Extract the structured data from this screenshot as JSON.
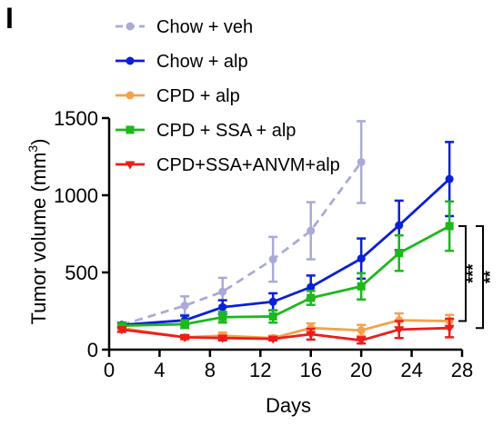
{
  "panel_label": "I",
  "chart_data": {
    "type": "line",
    "title": "",
    "xlabel": "Days",
    "ylabel_main": "Tumor volume (mm",
    "ylabel_sup": "3",
    "ylabel_close": ")",
    "xlim": [
      0,
      28
    ],
    "ylim": [
      0,
      1500
    ],
    "xticks": [
      0,
      4,
      8,
      12,
      16,
      20,
      24,
      28
    ],
    "yticks": [
      0,
      500,
      1000,
      1500
    ],
    "legend_position": "top-left",
    "series": [
      {
        "name": "Chow + veh",
        "color": "#a9abd6",
        "dashed": true,
        "marker": "circle",
        "x": [
          1,
          6,
          9,
          13,
          16,
          20
        ],
        "y": [
          160,
          285,
          375,
          585,
          770,
          1215
        ],
        "err": [
          15,
          60,
          90,
          145,
          185,
          265
        ]
      },
      {
        "name": "Chow + alp",
        "color": "#0a1fd8",
        "dashed": false,
        "marker": "circle",
        "x": [
          1,
          6,
          9,
          13,
          16,
          20,
          23,
          27
        ],
        "y": [
          160,
          190,
          275,
          310,
          405,
          590,
          805,
          1105
        ],
        "err": [
          15,
          30,
          45,
          55,
          75,
          130,
          160,
          240
        ]
      },
      {
        "name": "CPD + alp",
        "color": "#f4a24e",
        "dashed": false,
        "marker": "circle",
        "x": [
          1,
          6,
          9,
          13,
          16,
          20,
          23,
          27
        ],
        "y": [
          140,
          80,
          90,
          75,
          140,
          125,
          190,
          185
        ],
        "err": [
          15,
          15,
          20,
          15,
          30,
          35,
          45,
          40
        ]
      },
      {
        "name": "CPD + SSA + alp",
        "color": "#1cb81c",
        "dashed": false,
        "marker": "square",
        "x": [
          1,
          6,
          9,
          13,
          16,
          20,
          23,
          27
        ],
        "y": [
          155,
          165,
          210,
          215,
          335,
          410,
          625,
          800
        ],
        "err": [
          15,
          25,
          35,
          40,
          45,
          85,
          115,
          160
        ]
      },
      {
        "name": "CPD+SSA+ANVM+alp",
        "color": "#ee1c1c",
        "dashed": false,
        "marker": "triangle-down",
        "x": [
          1,
          6,
          9,
          13,
          16,
          20,
          23,
          27
        ],
        "y": [
          130,
          80,
          75,
          70,
          100,
          60,
          130,
          140
        ],
        "err": [
          15,
          10,
          15,
          10,
          35,
          20,
          55,
          60
        ]
      }
    ],
    "annotations": [
      {
        "text": "***",
        "from": 800,
        "to": 185
      },
      {
        "text": "**",
        "from": 800,
        "to": 140
      }
    ]
  }
}
